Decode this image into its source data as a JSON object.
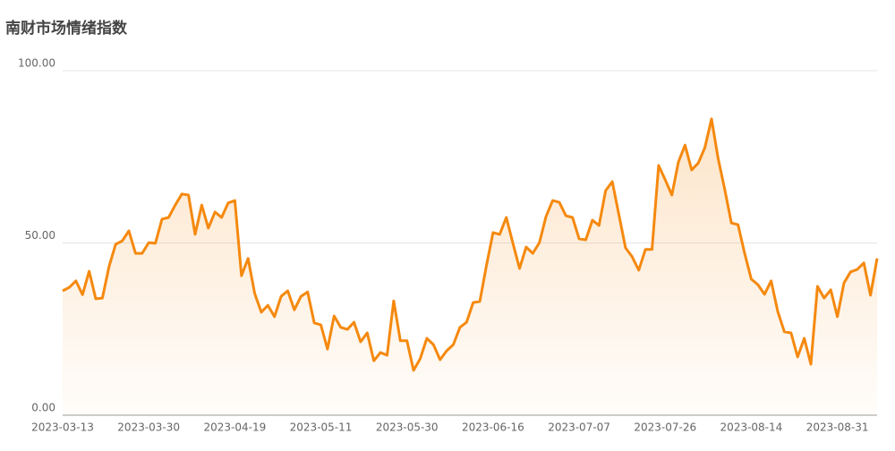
{
  "chart_data": {
    "type": "line",
    "title": "南财市场情绪指数",
    "categories": [
      "2023-03-13",
      null,
      null,
      null,
      null,
      null,
      null,
      null,
      null,
      null,
      null,
      null,
      null,
      "2023-03-30",
      null,
      null,
      null,
      null,
      null,
      null,
      null,
      null,
      null,
      null,
      null,
      null,
      "2023-04-19",
      null,
      null,
      null,
      null,
      null,
      null,
      null,
      null,
      null,
      null,
      null,
      null,
      "2023-05-11",
      null,
      null,
      null,
      null,
      null,
      null,
      null,
      null,
      null,
      null,
      null,
      null,
      "2023-05-30",
      null,
      null,
      null,
      null,
      null,
      null,
      null,
      null,
      null,
      null,
      null,
      null,
      "2023-06-16",
      null,
      null,
      null,
      null,
      null,
      null,
      null,
      null,
      null,
      null,
      null,
      null,
      "2023-07-07",
      null,
      null,
      null,
      null,
      null,
      null,
      null,
      null,
      null,
      null,
      null,
      null,
      "2023-07-26",
      null,
      null,
      null,
      null,
      null,
      null,
      null,
      null,
      null,
      null,
      null,
      null,
      "2023-08-14",
      null,
      null,
      null,
      null,
      null,
      null,
      null,
      null,
      null,
      null,
      null,
      null,
      "2023-08-31",
      null,
      null,
      null,
      null,
      null,
      null
    ],
    "values": [
      36.1,
      37.1,
      39,
      35,
      41.8,
      33.8,
      34,
      43.1,
      49.6,
      50.6,
      53.5,
      47,
      47,
      50.1,
      49.9,
      56.9,
      57.4,
      61,
      64.2,
      63.9,
      52.5,
      61,
      54.3,
      59,
      57.4,
      61.6,
      62.3,
      40.5,
      45.5,
      35.3,
      29.9,
      31.9,
      28.6,
      34.5,
      36.1,
      30.6,
      34.5,
      35.8,
      26.8,
      26.2,
      19.2,
      28.8,
      25.5,
      24.9,
      27,
      21.3,
      23.9,
      15.8,
      18.2,
      17.4,
      33.2,
      21.6,
      21.6,
      13,
      16.4,
      22.3,
      20.5,
      16.1,
      18.7,
      20.5,
      25.5,
      27,
      32.7,
      33,
      43.4,
      53,
      52.5,
      57.4,
      49.9,
      42.6,
      48.8,
      47,
      50.1,
      57.7,
      62.3,
      61.8,
      57.9,
      57.4,
      51.2,
      50.9,
      56.6,
      55.1,
      65.2,
      67.8,
      58.2,
      48.6,
      46,
      42.1,
      48.1,
      48.1,
      72.5,
      68.3,
      63.9,
      73.5,
      78.4,
      71.2,
      73.2,
      77.7,
      86,
      74.5,
      65.5,
      55.8,
      55.3,
      47,
      39.5,
      37.9,
      35.1,
      39,
      30.1,
      24.2,
      23.9,
      16.9,
      22.3,
      14.8,
      37.4,
      34,
      36.4,
      28.6,
      38.4,
      41.6,
      42.3,
      44.2,
      34.8,
      45.5
    ],
    "color": "#f5890f",
    "ylim": [
      0,
      100
    ],
    "yticks": [
      {
        "value": 0,
        "label": "0.00"
      },
      {
        "value": 50,
        "label": "50.00"
      },
      {
        "value": 100,
        "label": "100.00"
      }
    ],
    "grid": true
  }
}
